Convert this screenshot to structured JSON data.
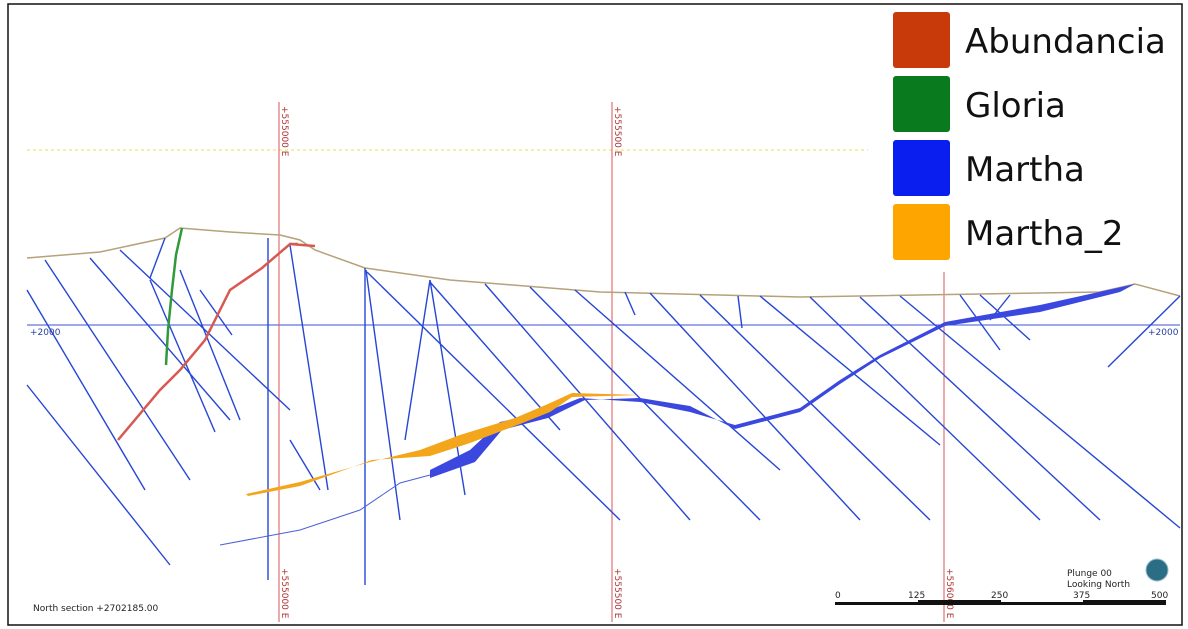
{
  "legend": {
    "items": [
      "Abundancia",
      "Gloria",
      "Martha",
      "Martha_2"
    ]
  },
  "section_lines": {
    "top": [
      "+555000 E",
      "+555500 E"
    ],
    "bottom": [
      "+555000 E",
      "+555500 E",
      "+556000 E"
    ]
  },
  "elevation_labels": {
    "left": "+2000",
    "right": "+2000"
  },
  "footer": {
    "section": "North section +2702185.00",
    "plunge": "Plunge 00",
    "looking": "Looking North"
  },
  "scale_bar": {
    "labels": [
      "0",
      "125",
      "250",
      "375",
      "500"
    ]
  }
}
